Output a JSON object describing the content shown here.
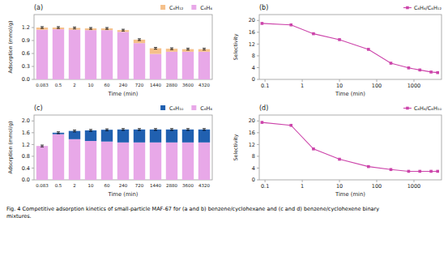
{
  "caption": "Fig. 4   Competitive adsorption kinetics of small-particle MAF-67 for (a and b) benzene/cyclohexane and (c and d) benzene/cyclohexene binary\nmixtures.",
  "chart_data": [
    {
      "type": "bar",
      "stacked": true,
      "title": "(a)",
      "xlabel": "Time (min)",
      "ylabel": "Adsorption (mmol/g)",
      "categories": [
        "0.083",
        "0.5",
        "2",
        "10",
        "60",
        "240",
        "720",
        "1440",
        "2880",
        "3600",
        "4320"
      ],
      "series": [
        {
          "name": "C₆H₆",
          "color": "#E8A8E8",
          "values": [
            1.15,
            1.16,
            1.15,
            1.14,
            1.14,
            1.1,
            0.84,
            0.59,
            0.64,
            0.64,
            0.64
          ]
        },
        {
          "name": "C₆H₁₂",
          "color": "#F5C08A",
          "values": [
            0.05,
            0.04,
            0.04,
            0.04,
            0.04,
            0.04,
            0.08,
            0.13,
            0.07,
            0.06,
            0.06
          ],
          "error": 0.02
        }
      ],
      "ylim": [
        0,
        1.5
      ],
      "yticks": [
        {
          "value": 0,
          "label": "0.0"
        },
        0.3,
        0.6,
        0.9,
        1.2
      ],
      "legend": "upper right",
      "grid": false
    },
    {
      "type": "line",
      "title": "(b)",
      "xlabel": "Time (min)",
      "ylabel": "Selectivity",
      "log": "x",
      "x": [
        0.083,
        0.5,
        2,
        10,
        60,
        240,
        720,
        1440,
        2880,
        4320
      ],
      "series": [
        {
          "name": "C₆H₆/C₆H₁₂",
          "color": "#CC44AA",
          "marker": "square",
          "values": [
            19.0,
            18.5,
            15.5,
            13.5,
            10.2,
            5.5,
            3.9,
            3.2,
            2.5,
            2.3
          ]
        }
      ],
      "xlim": [
        0.07,
        5500
      ],
      "xticks": [
        0.1,
        1,
        10,
        100,
        1000
      ],
      "ylim": [
        0,
        22
      ],
      "yticks": [
        0,
        4,
        8,
        12,
        16,
        20
      ],
      "legend": "upper right",
      "grid": false
    },
    {
      "type": "bar",
      "stacked": true,
      "title": "(c)",
      "xlabel": "Time (min)",
      "ylabel": "Adsorption (mmol/g)",
      "categories": [
        "0.083",
        "0.5",
        "2",
        "10",
        "60",
        "240",
        "720",
        "1440",
        "2880",
        "3600",
        "4320"
      ],
      "series": [
        {
          "name": "C₆H₆",
          "color": "#E8A8E8",
          "values": [
            1.15,
            1.55,
            1.38,
            1.32,
            1.3,
            1.27,
            1.27,
            1.27,
            1.27,
            1.27,
            1.27
          ]
        },
        {
          "name": "C₆H₁₀",
          "color": "#2060B0",
          "values": [
            0.0,
            0.05,
            0.28,
            0.36,
            0.4,
            0.44,
            0.44,
            0.44,
            0.44,
            0.44,
            0.44
          ],
          "error": 0.03
        }
      ],
      "ylim": [
        0,
        2.2
      ],
      "yticks": [
        {
          "value": 0,
          "label": "0.0"
        },
        0.4,
        0.8,
        1.2,
        1.6,
        {
          "value": 2,
          "label": "2.0"
        }
      ],
      "legend": "upper right",
      "grid": false
    },
    {
      "type": "line",
      "title": "(d)",
      "xlabel": "Time (min)",
      "ylabel": "Selectivity",
      "log": "x",
      "x": [
        0.083,
        0.5,
        2,
        10,
        60,
        240,
        720,
        1440,
        2880,
        4320
      ],
      "series": [
        {
          "name": "C₆H₆/C₆H₁₀",
          "color": "#CC44AA",
          "marker": "square",
          "values": [
            19.5,
            18.5,
            10.5,
            7.0,
            4.5,
            3.5,
            2.9,
            2.9,
            2.9,
            2.9
          ]
        }
      ],
      "xlim": [
        0.07,
        5500
      ],
      "xticks": [
        0.1,
        1,
        10,
        100,
        1000
      ],
      "ylim": [
        0,
        22
      ],
      "yticks": [
        0,
        4,
        8,
        12,
        16,
        20
      ],
      "legend": "upper right",
      "grid": false
    }
  ]
}
